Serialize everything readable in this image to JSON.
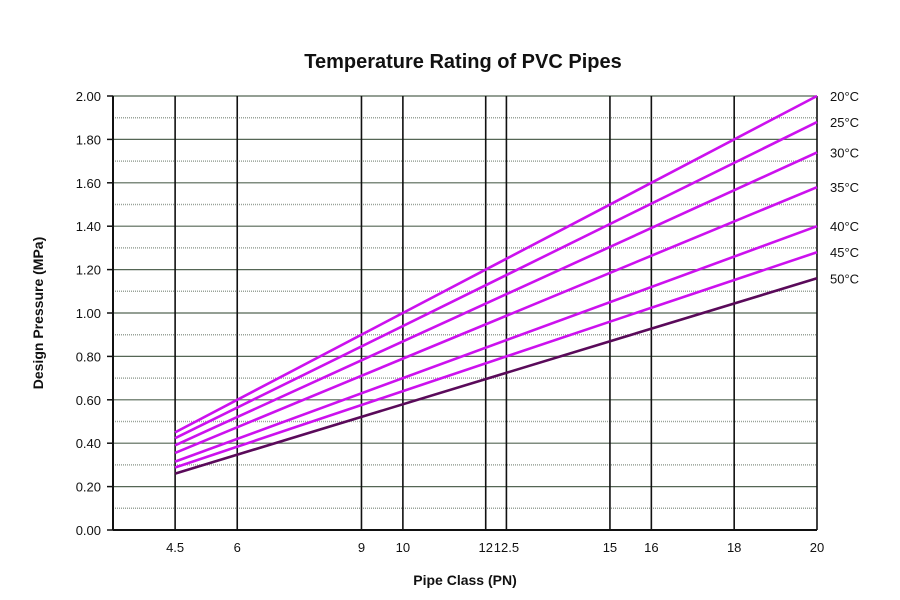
{
  "chart_data": {
    "type": "line",
    "title": "Temperature Rating of PVC Pipes",
    "xlabel": "Pipe Class (PN)",
    "ylabel": "Design Pressure (MPa)",
    "xlim": [
      3,
      20
    ],
    "ylim": [
      0,
      2
    ],
    "x_ticks": [
      4.5,
      6,
      9,
      10,
      12,
      12.5,
      15,
      16,
      18,
      20
    ],
    "x_tick_labels": [
      "4.5",
      "6",
      "9",
      "10",
      "12",
      "12.5",
      "15",
      "16",
      "18",
      "20"
    ],
    "y_ticks": [
      0,
      0.2,
      0.4,
      0.6,
      0.8,
      1.0,
      1.2,
      1.4,
      1.6,
      1.8,
      2.0
    ],
    "y_tick_labels": [
      "0.00",
      "0.20",
      "0.40",
      "0.60",
      "0.80",
      "1.00",
      "1.20",
      "1.40",
      "1.60",
      "1.80",
      "2.00"
    ],
    "minor_grid_step": 0.1,
    "grid": true,
    "legend_placement": "right, at line ends",
    "series": [
      {
        "name": "20°C",
        "x": [
          4.5,
          20
        ],
        "values": [
          0.45,
          2.0
        ],
        "color": "#cc11ee"
      },
      {
        "name": "25°C",
        "x": [
          4.5,
          20
        ],
        "values": [
          0.423,
          1.88
        ],
        "color": "#cc11ee"
      },
      {
        "name": "30°C",
        "x": [
          4.5,
          20
        ],
        "values": [
          0.39,
          1.74
        ],
        "color": "#cc11ee"
      },
      {
        "name": "35°C",
        "x": [
          4.5,
          20
        ],
        "values": [
          0.355,
          1.58
        ],
        "color": "#cc11ee"
      },
      {
        "name": "40°C",
        "x": [
          4.5,
          20
        ],
        "values": [
          0.315,
          1.4
        ],
        "color": "#cc11ee"
      },
      {
        "name": "45°C",
        "x": [
          4.5,
          20
        ],
        "values": [
          0.288,
          1.28
        ],
        "color": "#cc11ee"
      },
      {
        "name": "50°C",
        "x": [
          4.5,
          20
        ],
        "values": [
          0.26,
          1.16
        ],
        "color": "#5a0a5a"
      }
    ]
  }
}
